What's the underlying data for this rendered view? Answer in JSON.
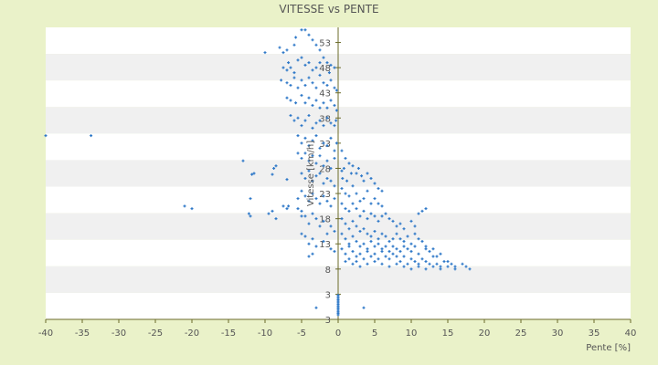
{
  "chart_data": {
    "type": "scatter",
    "title": "VITESSE vs PENTE",
    "xlabel": "Pente [%]",
    "ylabel": "Vitesse [km/h]",
    "xlim": [
      -40,
      40
    ],
    "ylim": [
      -2,
      56
    ],
    "x_ticks": [
      "-40",
      "-35",
      "-30",
      "-25",
      "-20",
      "-15",
      "-10",
      "-5",
      "0",
      "5",
      "10",
      "15",
      "20",
      "25",
      "30",
      "35",
      "40"
    ],
    "y_ticks": [
      {
        "value": 3,
        "label": "3"
      },
      {
        "value": 8,
        "label": "8"
      },
      {
        "value": 13,
        "label": "13"
      },
      {
        "value": 18,
        "label": "18"
      },
      {
        "value": 23,
        "label": "23"
      },
      {
        "value": 28,
        "label": "28"
      },
      {
        "value": 33,
        "label": "33"
      },
      {
        "value": 38,
        "label": "38"
      },
      {
        "value": 43,
        "label": "43"
      },
      {
        "value": 48,
        "label": "48"
      },
      {
        "value": 53,
        "label": "53"
      }
    ],
    "y_bottom_label": "3",
    "grid": "alternating horizontal bands",
    "legend": "none",
    "colors": {
      "background": "#eaf2c9",
      "plot_band_light": "#ffffff",
      "plot_band_dark": "#f0f0f0",
      "axis": "#6b6b2a",
      "marker": "#2e78c8",
      "text": "#555555"
    },
    "points": [
      [
        -40,
        34.5
      ],
      [
        -33.8,
        34.5
      ],
      [
        -21,
        20.5
      ],
      [
        -20,
        20
      ],
      [
        -13,
        29.5
      ],
      [
        -12,
        22
      ],
      [
        -11.5,
        27
      ],
      [
        -11.8,
        26.8
      ],
      [
        -9.5,
        19
      ],
      [
        -9,
        19.5
      ],
      [
        -9,
        26.8
      ],
      [
        -8.8,
        28
      ],
      [
        -8.5,
        28.5
      ],
      [
        -7.5,
        20.5
      ],
      [
        -7,
        20
      ],
      [
        -7,
        25.8
      ],
      [
        -6.8,
        20.5
      ],
      [
        -12.2,
        19
      ],
      [
        -12,
        18.5
      ],
      [
        -8.5,
        18
      ],
      [
        -5.5,
        20
      ],
      [
        -5,
        18.5
      ],
      [
        -10,
        51
      ],
      [
        -8,
        52
      ],
      [
        -7.5,
        51
      ],
      [
        -7,
        51.5
      ],
      [
        -6,
        52.5
      ],
      [
        -5.8,
        54
      ],
      [
        -5,
        55.5
      ],
      [
        -4.5,
        55.5
      ],
      [
        -4,
        54.5
      ],
      [
        -3.5,
        53.5
      ],
      [
        -3,
        52.5
      ],
      [
        -2.5,
        51.5
      ],
      [
        -7.5,
        48
      ],
      [
        -7,
        47.5
      ],
      [
        -6.8,
        49
      ],
      [
        -6.5,
        48
      ],
      [
        -6,
        47
      ],
      [
        -5.5,
        49.5
      ],
      [
        -5,
        50
      ],
      [
        -4.5,
        48.5
      ],
      [
        -4,
        49
      ],
      [
        -3.5,
        47.5
      ],
      [
        -3,
        48
      ],
      [
        -2.5,
        49
      ],
      [
        -2,
        50
      ],
      [
        -1.5,
        49
      ],
      [
        -1,
        48.5
      ],
      [
        -0.5,
        48
      ],
      [
        -1.2,
        47
      ],
      [
        -7.8,
        45.5
      ],
      [
        -7,
        45
      ],
      [
        -6.5,
        44.5
      ],
      [
        -6,
        46
      ],
      [
        -5.5,
        44
      ],
      [
        -5,
        45.5
      ],
      [
        -4.5,
        44.5
      ],
      [
        -4,
        46
      ],
      [
        -3.5,
        45
      ],
      [
        -3,
        44
      ],
      [
        -2.5,
        46.5
      ],
      [
        -2,
        45
      ],
      [
        -1.5,
        44.5
      ],
      [
        -1,
        45.5
      ],
      [
        -0.5,
        44
      ],
      [
        -0.2,
        43.5
      ],
      [
        -7,
        42
      ],
      [
        -6.5,
        41.5
      ],
      [
        -5.8,
        41
      ],
      [
        -5,
        42.5
      ],
      [
        -4.5,
        41
      ],
      [
        -4,
        42
      ],
      [
        -3.5,
        40.5
      ],
      [
        -3,
        41.5
      ],
      [
        -2.5,
        40
      ],
      [
        -2,
        41
      ],
      [
        -1.5,
        40
      ],
      [
        -1,
        41.5
      ],
      [
        -0.5,
        40.5
      ],
      [
        -0.2,
        39.5
      ],
      [
        -6.5,
        38.5
      ],
      [
        -6,
        37.5
      ],
      [
        -5.5,
        38
      ],
      [
        -5,
        36.5
      ],
      [
        -4.5,
        37.5
      ],
      [
        -4,
        38.5
      ],
      [
        -3.5,
        36
      ],
      [
        -3,
        37
      ],
      [
        -2.5,
        37.5
      ],
      [
        -2,
        36.5
      ],
      [
        -1.5,
        38
      ],
      [
        -1,
        37
      ],
      [
        -0.5,
        36.5
      ],
      [
        -0.3,
        37.5
      ],
      [
        -5.5,
        34.5
      ],
      [
        -5,
        33
      ],
      [
        -4.5,
        34
      ],
      [
        -4,
        32.5
      ],
      [
        -3.5,
        33.5
      ],
      [
        -3,
        34.5
      ],
      [
        -2.5,
        32
      ],
      [
        -2,
        33
      ],
      [
        -1.5,
        32.5
      ],
      [
        -1,
        34
      ],
      [
        -0.5,
        31.5
      ],
      [
        -0.2,
        33
      ],
      [
        -5.5,
        31
      ],
      [
        -5,
        30
      ],
      [
        -4.5,
        31
      ],
      [
        -4,
        29.5
      ],
      [
        -3.5,
        30.5
      ],
      [
        -3,
        29
      ],
      [
        -2.5,
        30.5
      ],
      [
        -2,
        28.5
      ],
      [
        -1.5,
        29.5
      ],
      [
        -1,
        28
      ],
      [
        -0.5,
        30
      ],
      [
        -5,
        27
      ],
      [
        -4.5,
        26
      ],
      [
        -4,
        27.5
      ],
      [
        -3.5,
        25.5
      ],
      [
        -3,
        26.5
      ],
      [
        -2.5,
        27
      ],
      [
        -2,
        25
      ],
      [
        -1.5,
        26
      ],
      [
        -1,
        25.5
      ],
      [
        -0.5,
        24.5
      ],
      [
        -5.5,
        22
      ],
      [
        -5,
        23.5
      ],
      [
        -4.5,
        22.5
      ],
      [
        -4,
        21.5
      ],
      [
        -3.5,
        23
      ],
      [
        -3,
        22
      ],
      [
        -2.5,
        21
      ],
      [
        -2,
        22.5
      ],
      [
        -1.5,
        21.5
      ],
      [
        -1,
        20.5
      ],
      [
        -0.5,
        22
      ],
      [
        -5,
        19.5
      ],
      [
        -4.5,
        18.5
      ],
      [
        -4,
        17
      ],
      [
        -3.5,
        19
      ],
      [
        -3,
        18
      ],
      [
        -2.5,
        16.5
      ],
      [
        -2,
        17.5
      ],
      [
        -1.5,
        15
      ],
      [
        -1,
        16.5
      ],
      [
        -0.5,
        15.5
      ],
      [
        -5,
        15
      ],
      [
        -4.5,
        14.5
      ],
      [
        -4,
        13
      ],
      [
        -3.5,
        14
      ],
      [
        -3,
        12.5
      ],
      [
        -2,
        13.5
      ],
      [
        -1,
        12
      ],
      [
        -0.5,
        11.5
      ],
      [
        -4,
        10.5
      ],
      [
        -3.5,
        11
      ],
      [
        -3,
        0.3
      ],
      [
        3.5,
        0.3
      ],
      [
        0,
        2.8
      ],
      [
        0,
        2.5
      ],
      [
        0,
        2.2
      ],
      [
        0,
        1.9
      ],
      [
        0,
        1.6
      ],
      [
        0,
        1.3
      ],
      [
        0,
        1.0
      ],
      [
        0,
        0.7
      ],
      [
        0,
        0.4
      ],
      [
        0,
        0.1
      ],
      [
        0,
        -0.2
      ],
      [
        0,
        -0.5
      ],
      [
        0,
        -0.8
      ],
      [
        0,
        -1.1
      ],
      [
        0.5,
        31.5
      ],
      [
        1,
        30
      ],
      [
        0.8,
        28
      ],
      [
        0.5,
        27.5
      ],
      [
        1.5,
        29
      ],
      [
        1.8,
        27
      ],
      [
        0.6,
        26
      ],
      [
        1.2,
        25.5
      ],
      [
        2,
        28.5
      ],
      [
        2.5,
        27
      ],
      [
        2.8,
        28
      ],
      [
        3.2,
        26.5
      ],
      [
        3.5,
        25.5
      ],
      [
        4,
        27
      ],
      [
        4.5,
        26
      ],
      [
        5,
        25
      ],
      [
        5.5,
        24
      ],
      [
        6,
        23.5
      ],
      [
        0.5,
        24
      ],
      [
        1,
        23
      ],
      [
        1.5,
        22.5
      ],
      [
        2,
        24.5
      ],
      [
        2.5,
        23
      ],
      [
        3,
        21.5
      ],
      [
        3.5,
        22
      ],
      [
        4,
        23.5
      ],
      [
        4.5,
        21
      ],
      [
        5,
        22
      ],
      [
        5.5,
        21
      ],
      [
        6,
        20.5
      ],
      [
        0.5,
        21
      ],
      [
        1,
        20
      ],
      [
        1.5,
        19.5
      ],
      [
        2,
        21
      ],
      [
        2.5,
        20
      ],
      [
        3,
        18.5
      ],
      [
        3.5,
        19.5
      ],
      [
        4,
        18
      ],
      [
        4.5,
        19
      ],
      [
        5,
        18.5
      ],
      [
        5.5,
        17.5
      ],
      [
        6,
        18.5
      ],
      [
        6.5,
        19
      ],
      [
        7,
        18
      ],
      [
        7.5,
        17.5
      ],
      [
        8,
        16.5
      ],
      [
        8.5,
        17
      ],
      [
        9,
        16
      ],
      [
        11,
        19
      ],
      [
        11.5,
        19.5
      ],
      [
        12,
        20
      ],
      [
        10,
        17.5
      ],
      [
        10.5,
        16.5
      ],
      [
        0.5,
        18
      ],
      [
        1,
        17
      ],
      [
        1.5,
        16
      ],
      [
        2,
        17.5
      ],
      [
        2.5,
        16.5
      ],
      [
        3,
        15.5
      ],
      [
        3.5,
        16
      ],
      [
        4,
        15
      ],
      [
        4.5,
        14.5
      ],
      [
        5,
        15.5
      ],
      [
        5.5,
        14
      ],
      [
        6,
        15
      ],
      [
        6.5,
        14.5
      ],
      [
        7,
        13.5
      ],
      [
        7.5,
        14
      ],
      [
        8,
        15
      ],
      [
        8.5,
        14
      ],
      [
        9,
        13.5
      ],
      [
        9.5,
        14.5
      ],
      [
        10,
        13
      ],
      [
        10.5,
        15
      ],
      [
        11,
        14
      ],
      [
        11.5,
        13.5
      ],
      [
        12,
        12.5
      ],
      [
        0.5,
        15
      ],
      [
        1,
        14
      ],
      [
        1.5,
        13
      ],
      [
        2,
        14.5
      ],
      [
        2.5,
        13.5
      ],
      [
        3,
        12.5
      ],
      [
        3.5,
        13
      ],
      [
        4,
        12
      ],
      [
        4.5,
        13.5
      ],
      [
        5,
        12.5
      ],
      [
        5.5,
        13
      ],
      [
        6,
        12
      ],
      [
        6.5,
        12.5
      ],
      [
        7,
        11.5
      ],
      [
        7.5,
        12.5
      ],
      [
        8,
        12
      ],
      [
        8.5,
        11.5
      ],
      [
        9,
        12.5
      ],
      [
        9.5,
        12
      ],
      [
        10,
        11.5
      ],
      [
        10.5,
        12.5
      ],
      [
        11,
        11
      ],
      [
        12,
        12
      ],
      [
        12.5,
        11.5
      ],
      [
        13,
        12
      ],
      [
        13.5,
        10.5
      ],
      [
        14,
        11
      ],
      [
        15,
        9.5
      ],
      [
        0.5,
        12
      ],
      [
        1,
        11
      ],
      [
        1.5,
        12.5
      ],
      [
        2,
        11.5
      ],
      [
        2.5,
        10.5
      ],
      [
        3,
        11
      ],
      [
        3.5,
        10
      ],
      [
        4,
        11.5
      ],
      [
        4.5,
        10.5
      ],
      [
        5,
        11
      ],
      [
        5.5,
        10
      ],
      [
        6,
        11.5
      ],
      [
        6.5,
        10.5
      ],
      [
        7,
        10
      ],
      [
        7.5,
        11
      ],
      [
        8,
        10.5
      ],
      [
        8.5,
        9.5
      ],
      [
        9,
        10.5
      ],
      [
        9.5,
        9
      ],
      [
        10,
        10
      ],
      [
        10.5,
        9.5
      ],
      [
        11,
        9
      ],
      [
        11.5,
        10
      ],
      [
        12,
        9.5
      ],
      [
        12.5,
        9
      ],
      [
        13,
        10.5
      ],
      [
        13.5,
        9
      ],
      [
        14,
        8.5
      ],
      [
        14.5,
        9.5
      ],
      [
        15,
        8.5
      ],
      [
        15.5,
        9
      ],
      [
        16,
        8.5
      ],
      [
        17,
        9
      ],
      [
        17.5,
        8.5
      ],
      [
        18,
        8
      ],
      [
        1,
        9.5
      ],
      [
        1.5,
        10
      ],
      [
        2,
        9
      ],
      [
        2.5,
        9.5
      ],
      [
        3,
        8.5
      ],
      [
        4,
        9
      ],
      [
        5,
        9.5
      ],
      [
        6,
        9
      ],
      [
        7,
        8.5
      ],
      [
        8,
        9
      ],
      [
        9,
        8.5
      ],
      [
        10,
        8
      ],
      [
        11,
        8.5
      ],
      [
        12,
        8
      ],
      [
        13,
        8.5
      ],
      [
        14,
        8
      ],
      [
        16,
        8
      ]
    ]
  }
}
